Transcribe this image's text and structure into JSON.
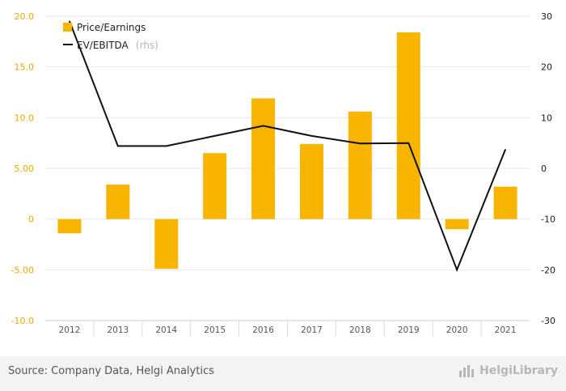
{
  "colors": {
    "bar": "#f7b500",
    "line": "#111111",
    "grid": "#e6e6e6",
    "left_axis_text": "#f0a800"
  },
  "chart_data": {
    "type": "bar",
    "categories": [
      "2012",
      "2013",
      "2014",
      "2015",
      "2016",
      "2017",
      "2018",
      "2019",
      "2020",
      "2021"
    ],
    "series": [
      {
        "name": "Price/Earnings",
        "type": "bar",
        "axis": "left",
        "values": [
          -1.4,
          3.4,
          -4.9,
          6.5,
          11.9,
          7.4,
          10.6,
          18.4,
          -1.0,
          3.2
        ]
      },
      {
        "name": "EV/EBITDA",
        "type": "line",
        "axis": "right",
        "values": [
          29.0,
          4.4,
          4.4,
          6.4,
          8.4,
          6.4,
          4.9,
          5.0,
          -20.0,
          3.7
        ]
      }
    ],
    "y_left": {
      "min": -10,
      "max": 20,
      "ticks": [
        "20.0",
        "15.0",
        "10.0",
        "5.00",
        "0",
        "-5.00",
        "-10.0"
      ],
      "tick_values": [
        20,
        15,
        10,
        5,
        0,
        -5,
        -10
      ]
    },
    "y_right": {
      "min": -30,
      "max": 30,
      "ticks": [
        "30",
        "20",
        "10",
        "0",
        "-10",
        "-20",
        "-30"
      ],
      "tick_values": [
        30,
        20,
        10,
        0,
        -10,
        -20,
        -30
      ]
    },
    "legend": {
      "position": "top-left",
      "items": [
        "Price/Earnings",
        "EV/EBITDA"
      ],
      "rhs_note": "(rhs)"
    },
    "grid": true
  },
  "footer": {
    "source": "Source: Company Data, Helgi Analytics",
    "brand": "HelgiLibrary"
  }
}
